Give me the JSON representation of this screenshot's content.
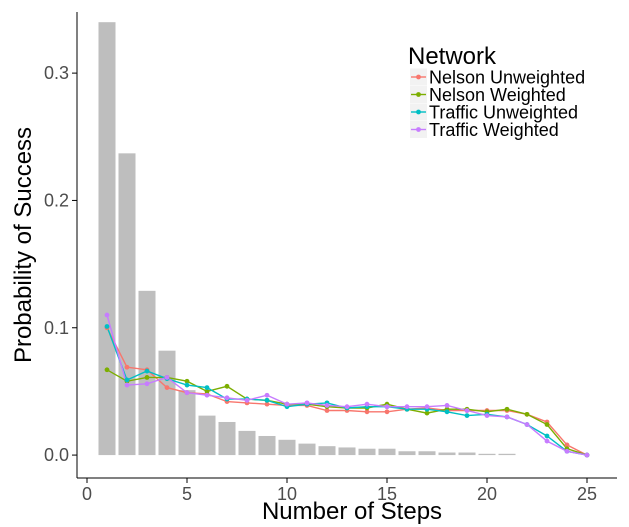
{
  "chart_data": {
    "type": "bar+line",
    "xlabel": "Number of Steps",
    "ylabel": "Probability of Success",
    "xlim": [
      -0.5,
      26.5
    ],
    "ylim": [
      -0.018,
      0.348
    ],
    "xticks": [
      0,
      5,
      10,
      15,
      20,
      25
    ],
    "yticks": [
      0.0,
      0.1,
      0.2,
      0.3
    ],
    "ytick_labels": [
      "0.0",
      "0.1",
      "0.2",
      "0.3"
    ],
    "grid": false,
    "bars": {
      "color": "#bebebe",
      "x": [
        1,
        2,
        3,
        4,
        5,
        6,
        7,
        8,
        9,
        10,
        11,
        12,
        13,
        14,
        15,
        16,
        17,
        18,
        19,
        20,
        21
      ],
      "values": [
        0.34,
        0.237,
        0.129,
        0.082,
        0.051,
        0.031,
        0.026,
        0.019,
        0.015,
        0.012,
        0.009,
        0.007,
        0.006,
        0.005,
        0.005,
        0.003,
        0.003,
        0.002,
        0.002,
        0.001,
        0.001
      ]
    },
    "legend": {
      "title": "Network",
      "position": "top-right"
    },
    "series": [
      {
        "name": "Nelson Unweighted",
        "color": "#f8766d",
        "x": [
          1,
          2,
          3,
          4,
          5,
          6,
          7,
          8,
          9,
          10,
          11,
          12,
          13,
          14,
          15,
          16,
          17,
          18,
          19,
          20,
          21,
          22,
          23,
          24,
          25
        ],
        "values": [
          0.1,
          0.069,
          0.067,
          0.053,
          0.049,
          0.048,
          0.042,
          0.041,
          0.04,
          0.039,
          0.039,
          0.035,
          0.035,
          0.034,
          0.034,
          0.036,
          0.037,
          0.035,
          0.035,
          0.035,
          0.035,
          0.032,
          0.026,
          0.008,
          0.0
        ]
      },
      {
        "name": "Nelson Weighted",
        "color": "#7cae00",
        "x": [
          1,
          2,
          3,
          4,
          5,
          6,
          7,
          8,
          9,
          10,
          11,
          12,
          13,
          14,
          15,
          16,
          17,
          18,
          19,
          20,
          21,
          22,
          23,
          24,
          25
        ],
        "values": [
          0.067,
          0.058,
          0.061,
          0.061,
          0.058,
          0.05,
          0.054,
          0.044,
          0.043,
          0.04,
          0.04,
          0.038,
          0.037,
          0.037,
          0.04,
          0.036,
          0.033,
          0.036,
          0.036,
          0.034,
          0.036,
          0.032,
          0.024,
          0.005,
          0.0
        ]
      },
      {
        "name": "Traffic Unweighted",
        "color": "#00bfc4",
        "x": [
          1,
          2,
          3,
          4,
          5,
          6,
          7,
          8,
          9,
          10,
          11,
          12,
          13,
          14,
          15,
          16,
          17,
          18,
          19,
          20,
          21,
          22,
          23,
          24,
          25
        ],
        "values": [
          0.101,
          0.059,
          0.066,
          0.06,
          0.055,
          0.053,
          0.044,
          0.044,
          0.043,
          0.038,
          0.04,
          0.041,
          0.037,
          0.038,
          0.038,
          0.036,
          0.036,
          0.034,
          0.031,
          0.032,
          0.03,
          0.024,
          0.015,
          0.003,
          0.0
        ]
      },
      {
        "name": "Traffic Weighted",
        "color": "#c77cff",
        "x": [
          1,
          2,
          3,
          4,
          5,
          6,
          7,
          8,
          9,
          10,
          11,
          12,
          13,
          14,
          15,
          16,
          17,
          18,
          19,
          20,
          21,
          22,
          23,
          24,
          25
        ],
        "values": [
          0.11,
          0.055,
          0.056,
          0.061,
          0.049,
          0.047,
          0.045,
          0.043,
          0.047,
          0.04,
          0.041,
          0.039,
          0.038,
          0.04,
          0.038,
          0.038,
          0.038,
          0.039,
          0.035,
          0.031,
          0.03,
          0.024,
          0.011,
          0.003,
          0.0
        ]
      }
    ]
  }
}
